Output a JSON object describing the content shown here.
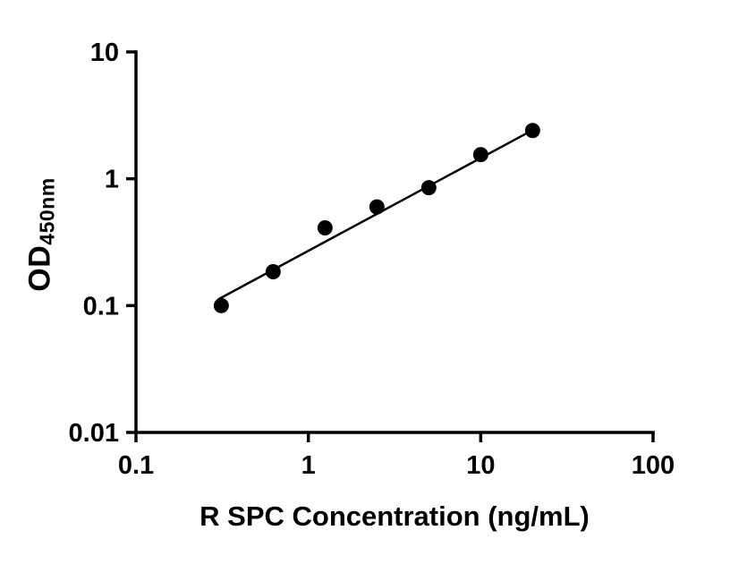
{
  "chart_data": {
    "type": "scatter",
    "title": "",
    "xlabel": "R SPC Concentration (ng/mL)",
    "ylabel_main": "OD",
    "ylabel_sub": "450nm",
    "x_scale": "log",
    "y_scale": "log",
    "xlim": [
      0.1,
      100
    ],
    "ylim": [
      0.01,
      10
    ],
    "grid": false,
    "legend": "none",
    "x_ticks": [
      {
        "value": 0.1,
        "label": "0.1"
      },
      {
        "value": 1,
        "label": "1"
      },
      {
        "value": 10,
        "label": "10"
      },
      {
        "value": 100,
        "label": "100"
      }
    ],
    "y_ticks": [
      {
        "value": 0.01,
        "label": "0.01"
      },
      {
        "value": 0.1,
        "label": "0.1"
      },
      {
        "value": 1,
        "label": "1"
      },
      {
        "value": 10,
        "label": "10"
      }
    ],
    "points": [
      {
        "x": 0.3125,
        "y": 0.1
      },
      {
        "x": 0.625,
        "y": 0.185
      },
      {
        "x": 1.25,
        "y": 0.41
      },
      {
        "x": 2.5,
        "y": 0.6
      },
      {
        "x": 5,
        "y": 0.85
      },
      {
        "x": 10,
        "y": 1.55
      },
      {
        "x": 20,
        "y": 2.4
      }
    ],
    "trendline": {
      "x1": 0.3,
      "y1": 0.112,
      "x2": 20,
      "y2": 2.42
    },
    "marker_color": "#000000",
    "line_color": "#000000",
    "axis_color": "#000000"
  }
}
